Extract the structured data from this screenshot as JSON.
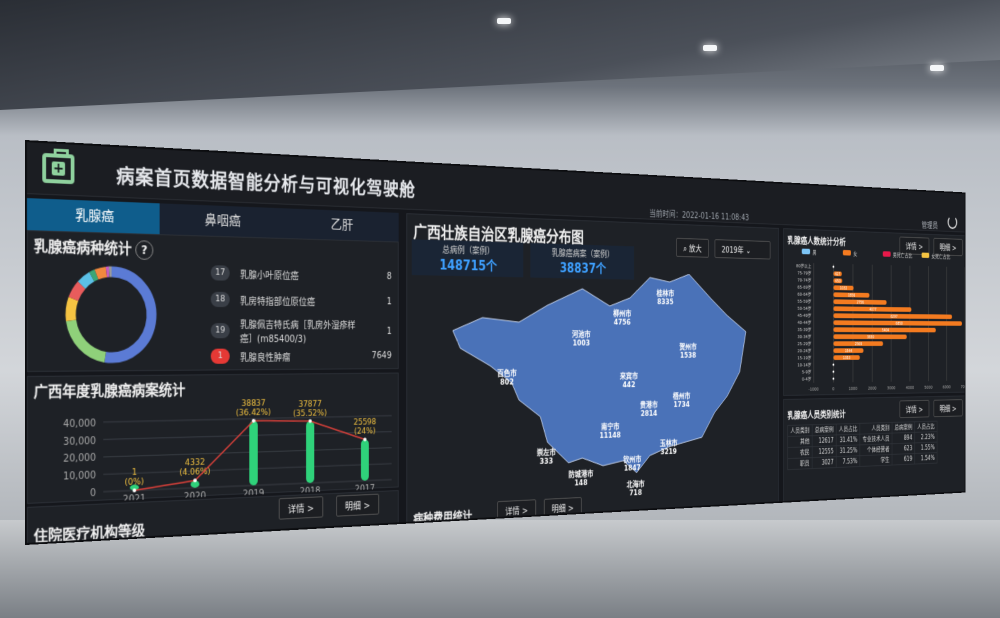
{
  "header": {
    "title": "病案首页数据智能分析与可视化驾驶舱",
    "time": "当前时间：2022-01-16 11:08:43",
    "user": "管理员",
    "logo_icon": "medical-kit-icon",
    "accent": "#8fd19e"
  },
  "tabs": [
    {
      "label": "乳腺癌",
      "active": true
    },
    {
      "label": "鼻咽癌"
    },
    {
      "label": "乙肝"
    }
  ],
  "disease": {
    "title": "乳腺癌病种统计",
    "help": "?",
    "items": [
      {
        "rank": "17",
        "label": "乳腺小叶原位癌",
        "value": "8"
      },
      {
        "rank": "18",
        "label": "乳房特指部位原位癌",
        "value": "1"
      },
      {
        "rank": "19",
        "label": "乳腺佩吉特氏病［乳房外湿疹样癌］(m85400/3)",
        "value": "1"
      },
      {
        "rank": "1",
        "label": "乳腺良性肿瘤",
        "value": "7649"
      }
    ],
    "donut_colors": [
      "#5b7bd5",
      "#8fd07a",
      "#f5c342",
      "#e85c5c",
      "#5bc0e6",
      "#3aa676",
      "#f0883e",
      "#c85ac8",
      "#9a9a9a"
    ],
    "donut_values": [
      52,
      20,
      8,
      6,
      5,
      2,
      4,
      1,
      1
    ]
  },
  "annual": {
    "title": "广西年度乳腺癌病案统计",
    "details": "详情 >",
    "more": "明细 >"
  },
  "chart_data": [
    {
      "type": "bar",
      "categories": [
        "2021",
        "2020",
        "2019",
        "2018",
        "2017"
      ],
      "values": [
        1,
        4332,
        38837,
        37877,
        25598
      ],
      "labels": [
        "1\n(0%)",
        "4332\n(4.06%)",
        "38837\n(36.42%)",
        "37877\n(35.52%)",
        "25598\n(24%)"
      ],
      "yticks": [
        "0",
        "10,000",
        "20,000",
        "30,000",
        "40,000"
      ],
      "ylim": [
        0,
        45000
      ],
      "bar_color": "#2fd27a",
      "line_color": "#d9403a"
    },
    {
      "type": "bar",
      "orientation": "horizontal",
      "title": "乳腺癌人数统计分析",
      "categories": [
        "80岁以上",
        "75-79岁",
        "70-74岁",
        "65-69岁",
        "60-64岁",
        "55-59岁",
        "50-54岁",
        "45-49岁",
        "40-44岁",
        "35-39岁",
        "30-34岁",
        "25-29岁",
        "20-24岁",
        "15-19岁",
        "10-14岁",
        "5-9岁",
        "0-4岁"
      ],
      "series": [
        {
          "name": "男",
          "values": [
            0,
            0,
            0,
            0,
            3,
            2,
            1,
            2,
            3,
            1,
            1,
            1,
            1,
            1,
            0,
            0,
            0
          ]
        },
        {
          "name": "女",
          "values": [
            0,
            427,
            450,
            1032,
            1856,
            2756,
            4077,
            6297,
            6850,
            5404,
            3830,
            2569,
            1544,
            1353,
            0,
            0,
            0
          ]
        }
      ],
      "legend": [
        "男",
        "女",
        "男死亡占比",
        "女死亡占比"
      ],
      "legend_colors": [
        "#7cc4f5",
        "#f47b20",
        "#e8194a",
        "#f5c342"
      ],
      "xticks": [
        "-1000",
        "0",
        "1000",
        "2000",
        "3000",
        "4000",
        "5000",
        "6000",
        "7000"
      ],
      "xlim": [
        -1000,
        7000
      ]
    }
  ],
  "map": {
    "title": "广西壮族自治区乳腺癌分布图",
    "zoom": "放大",
    "year": "2019年",
    "kpis": [
      {
        "label": "总病例（案例）",
        "value": "148715个"
      },
      {
        "label": "乳腺癌病案（案例）",
        "value": "38837个"
      }
    ],
    "cities": [
      {
        "name": "桂林市",
        "value": "8335"
      },
      {
        "name": "柳州市",
        "value": "4756"
      },
      {
        "name": "河池市",
        "value": "1003"
      },
      {
        "name": "贺州市",
        "value": "1538"
      },
      {
        "name": "百色市",
        "value": "802"
      },
      {
        "name": "来宾市",
        "value": "442"
      },
      {
        "name": "梧州市",
        "value": "1734"
      },
      {
        "name": "贵港市",
        "value": "2814"
      },
      {
        "name": "南宁市",
        "value": "11148"
      },
      {
        "name": "玉林市",
        "value": "3219"
      },
      {
        "name": "崇左市",
        "value": "333"
      },
      {
        "name": "钦州市",
        "value": "1847"
      },
      {
        "name": "防城港市",
        "value": "148"
      },
      {
        "name": "北海市",
        "value": "718"
      }
    ],
    "map_color": "#4a72b8",
    "bottom_title": "病种费用统计",
    "details": "详情 >",
    "more": "明细 >"
  },
  "age": {
    "title": "乳腺癌人数统计分析",
    "details": "详情 >",
    "more": "明细 >"
  },
  "category": {
    "title": "乳腺癌人员类别统计",
    "details": "详情 >",
    "more": "明细 >",
    "headers": [
      "人员类别",
      "总病案例",
      "人员占比",
      "人员类别",
      "总病案例",
      "人员占比"
    ],
    "rows": [
      [
        "其他",
        "12617",
        "31.41%",
        "专业技术人员",
        "894",
        "2.23%"
      ],
      [
        "农民",
        "12555",
        "31.25%",
        "个体经营者",
        "623",
        "1.55%"
      ],
      [
        "职员",
        "3027",
        "7.53%",
        "学生",
        "619",
        "1.54%"
      ]
    ]
  },
  "bottom": {
    "title": "住院医疗机构等级"
  }
}
